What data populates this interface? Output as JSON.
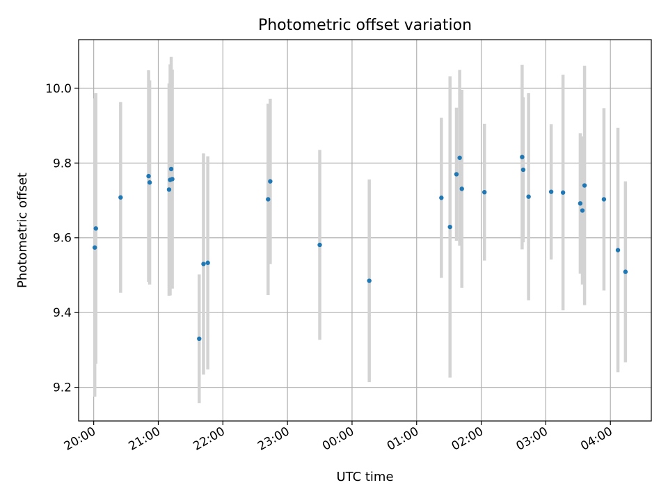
{
  "chart_data": {
    "type": "scatter",
    "title": "Photometric offset variation",
    "xlabel": "UTC time",
    "ylabel": "Photometric offset",
    "grid": true,
    "ylim": [
      9.11,
      10.13
    ],
    "xlim": [
      "19:46",
      "04:38"
    ],
    "y_ticks": [
      9.2,
      9.4,
      9.6,
      9.8,
      10.0
    ],
    "y_tick_labels": [
      "9.2",
      "9.4",
      "9.6",
      "9.8",
      "10.0"
    ],
    "x_ticks": [
      "20:00",
      "21:00",
      "22:00",
      "23:00",
      "00:00",
      "01:00",
      "02:00",
      "03:00",
      "04:00"
    ],
    "x_tick_labels": [
      "20:00",
      "21:00",
      "22:00",
      "23:00",
      "00:00",
      "01:00",
      "02:00",
      "03:00",
      "04:00"
    ],
    "colors": {
      "points": "#1f77b4",
      "error_bars": "#d3d3d3",
      "grid": "#b0b0b0"
    },
    "series": [
      {
        "points": [
          {
            "x": "20:01",
            "y": 9.574,
            "yerr": 0.399
          },
          {
            "x": "20:02",
            "y": 9.625,
            "yerr": 0.362
          },
          {
            "x": "20:25",
            "y": 9.708,
            "yerr": 0.255
          },
          {
            "x": "20:51",
            "y": 9.765,
            "yerr": 0.283
          },
          {
            "x": "20:52",
            "y": 9.748,
            "yerr": 0.273
          },
          {
            "x": "21:10",
            "y": 9.729,
            "yerr": 0.284
          },
          {
            "x": "21:11",
            "y": 9.755,
            "yerr": 0.309
          },
          {
            "x": "21:12",
            "y": 9.784,
            "yerr": 0.3
          },
          {
            "x": "21:13",
            "y": 9.757,
            "yerr": 0.293
          },
          {
            "x": "21:38",
            "y": 9.33,
            "yerr": 0.172
          },
          {
            "x": "21:42",
            "y": 9.53,
            "yerr": 0.296
          },
          {
            "x": "21:46",
            "y": 9.533,
            "yerr": 0.285
          },
          {
            "x": "22:42",
            "y": 9.703,
            "yerr": 0.256
          },
          {
            "x": "22:44",
            "y": 9.751,
            "yerr": 0.221
          },
          {
            "x": "23:30",
            "y": 9.581,
            "yerr": 0.254
          },
          {
            "x": "00:16",
            "y": 9.485,
            "yerr": 0.271
          },
          {
            "x": "01:23",
            "y": 9.707,
            "yerr": 0.214
          },
          {
            "x": "01:31",
            "y": 9.629,
            "yerr": 0.403
          },
          {
            "x": "01:37",
            "y": 9.77,
            "yerr": 0.178
          },
          {
            "x": "01:40",
            "y": 9.814,
            "yerr": 0.235
          },
          {
            "x": "01:42",
            "y": 9.731,
            "yerr": 0.265
          },
          {
            "x": "02:03",
            "y": 9.722,
            "yerr": 0.183
          },
          {
            "x": "02:38",
            "y": 9.816,
            "yerr": 0.247
          },
          {
            "x": "02:39",
            "y": 9.782,
            "yerr": 0.194
          },
          {
            "x": "02:44",
            "y": 9.71,
            "yerr": 0.277
          },
          {
            "x": "03:05",
            "y": 9.723,
            "yerr": 0.181
          },
          {
            "x": "03:16",
            "y": 9.721,
            "yerr": 0.315
          },
          {
            "x": "03:32",
            "y": 9.692,
            "yerr": 0.188
          },
          {
            "x": "03:34",
            "y": 9.673,
            "yerr": 0.198
          },
          {
            "x": "03:36",
            "y": 9.74,
            "yerr": 0.32
          },
          {
            "x": "03:54",
            "y": 9.703,
            "yerr": 0.244
          },
          {
            "x": "04:07",
            "y": 9.567,
            "yerr": 0.327
          },
          {
            "x": "04:14",
            "y": 9.509,
            "yerr": 0.242
          }
        ]
      }
    ]
  }
}
